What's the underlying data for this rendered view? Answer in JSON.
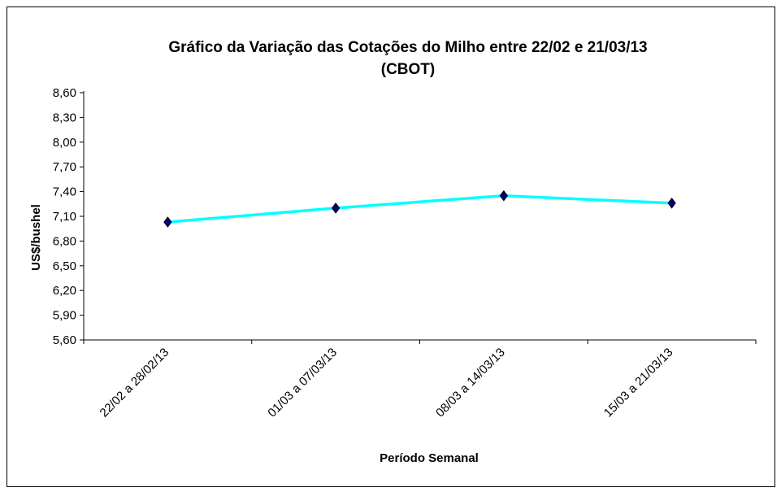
{
  "chart_data": {
    "type": "line",
    "title": "Gráfico da Variação das Cotações do Milho entre 22/02 e 21/03/13",
    "subtitle": "(CBOT)",
    "xlabel": "Período Semanal",
    "ylabel": "US$/bushel",
    "categories": [
      "22/02 a 28/02/13",
      "01/03 a 07/03/13",
      "08/03 a 14/03/13",
      "15/03 a 21/03/13"
    ],
    "series": [
      {
        "name": "Milho",
        "values": [
          7.03,
          7.2,
          7.35,
          7.26
        ],
        "color": "#00ffff",
        "marker_color": "#000080"
      }
    ],
    "ylim": [
      5.6,
      8.6
    ],
    "yticks": [
      "5,60",
      "5,90",
      "6,20",
      "6,50",
      "6,80",
      "7,10",
      "7,40",
      "7,70",
      "8,00",
      "8,30",
      "8,60"
    ],
    "grid": false,
    "legend": "none"
  }
}
